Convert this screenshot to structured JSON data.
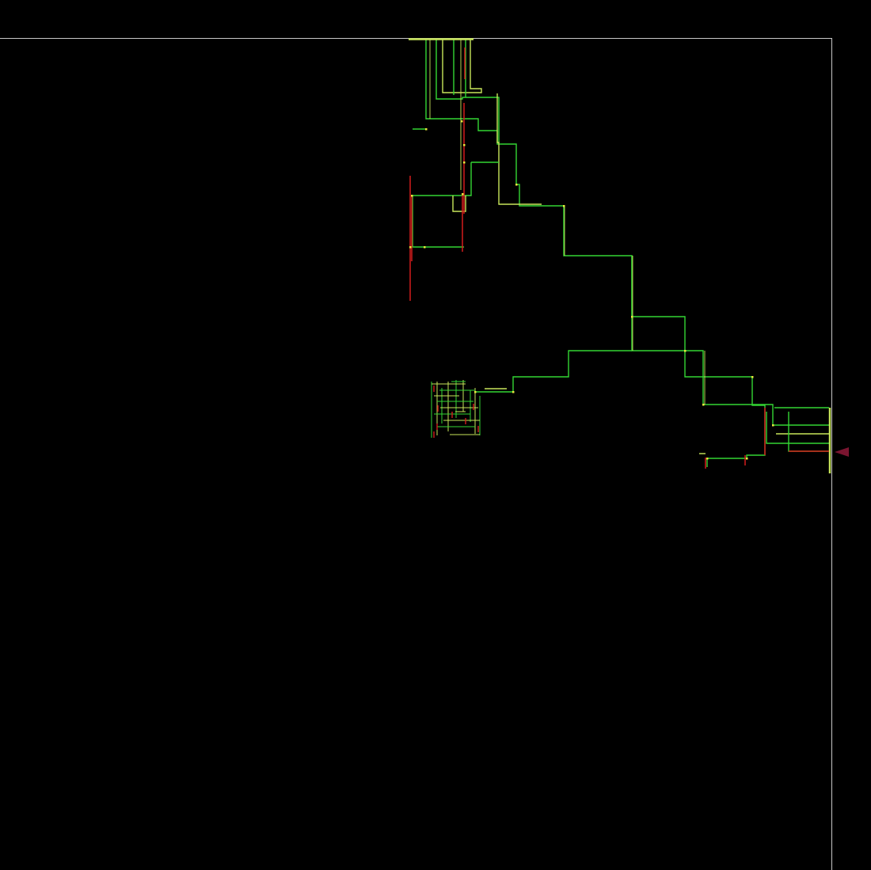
{
  "colors": {
    "background": "#000000",
    "boundary": "#c8c8c8",
    "primary_wire": "#33d633",
    "secondary_wire": "#c8e65a",
    "error_wire": "#d41c1c",
    "via_marker": "#e8e83c",
    "port_marker": "#7a1530"
  },
  "icons": {
    "port": "triangle-left-icon"
  }
}
